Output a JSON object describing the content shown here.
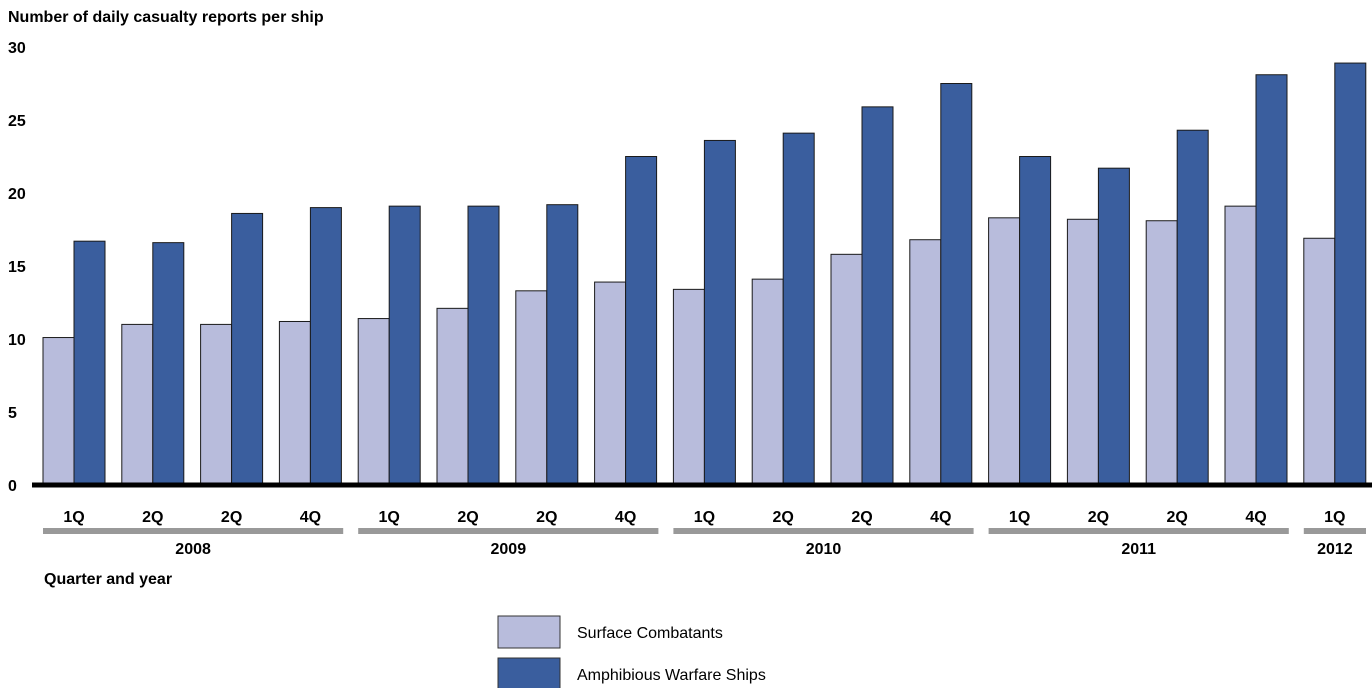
{
  "chart_data": {
    "type": "bar",
    "ylabel": "Number of daily casualty reports per ship",
    "xlabel": "Quarter and year",
    "ylim": [
      0,
      30
    ],
    "yticks": [
      0,
      5,
      10,
      15,
      20,
      25,
      30
    ],
    "categories": [
      "1Q",
      "2Q",
      "2Q",
      "4Q",
      "1Q",
      "2Q",
      "2Q",
      "4Q",
      "1Q",
      "2Q",
      "2Q",
      "4Q",
      "1Q",
      "2Q",
      "2Q",
      "4Q",
      "1Q"
    ],
    "groups": [
      {
        "label": "2008",
        "count": 4
      },
      {
        "label": "2009",
        "count": 4
      },
      {
        "label": "2010",
        "count": 4
      },
      {
        "label": "2011",
        "count": 4
      },
      {
        "label": "2012",
        "count": 1
      }
    ],
    "series": [
      {
        "name": "Surface Combatants",
        "color": "#b8bcdc",
        "values": [
          10.1,
          11.0,
          11.0,
          11.2,
          11.4,
          12.1,
          13.3,
          13.9,
          13.4,
          14.1,
          15.8,
          16.8,
          18.3,
          18.2,
          18.1,
          19.1,
          16.9
        ]
      },
      {
        "name": "Amphibious Warfare Ships",
        "color": "#3a5e9e",
        "values": [
          16.7,
          16.6,
          18.6,
          19.0,
          19.1,
          19.1,
          19.2,
          22.5,
          23.6,
          24.1,
          25.9,
          27.5,
          22.5,
          21.7,
          24.3,
          28.1,
          28.9
        ]
      }
    ],
    "legend_position": "bottom-center",
    "grid": false
  }
}
